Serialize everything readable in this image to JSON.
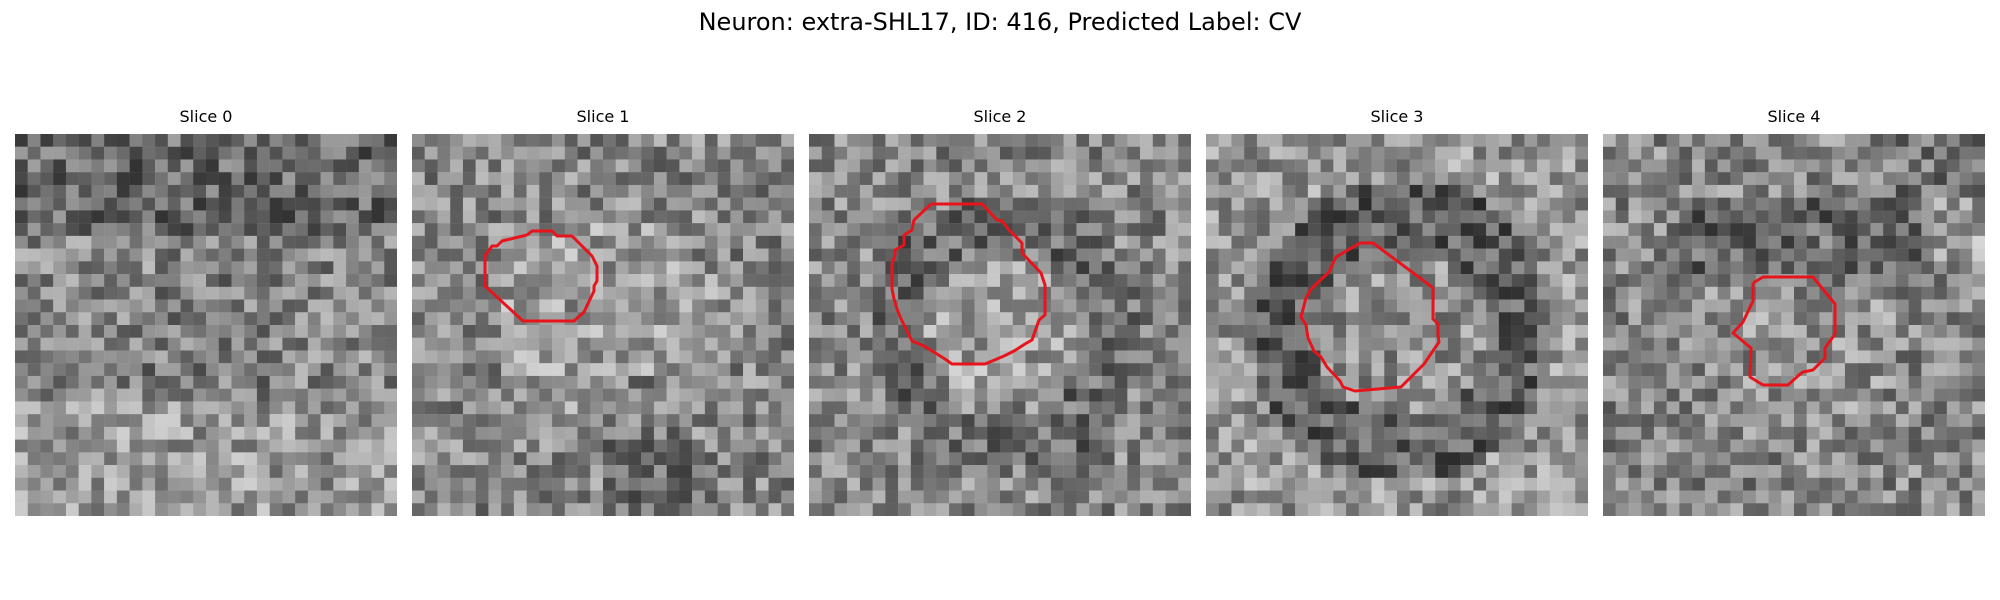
{
  "figure": {
    "title": "Neuron: extra-SHL17, ID: 416, Predicted Label: CV",
    "contour_color": "#e8141c",
    "slices": [
      {
        "label": "Slice 0",
        "has_contour": false,
        "image_tone": "noisy grayscale microscopy patch"
      },
      {
        "label": "Slice 1",
        "has_contour": true,
        "image_tone": "noisy grayscale microscopy patch"
      },
      {
        "label": "Slice 2",
        "has_contour": true,
        "image_tone": "noisy grayscale microscopy patch"
      },
      {
        "label": "Slice 3",
        "has_contour": true,
        "image_tone": "noisy grayscale microscopy patch"
      },
      {
        "label": "Slice 4",
        "has_contour": true,
        "image_tone": "noisy grayscale microscopy patch"
      }
    ]
  }
}
